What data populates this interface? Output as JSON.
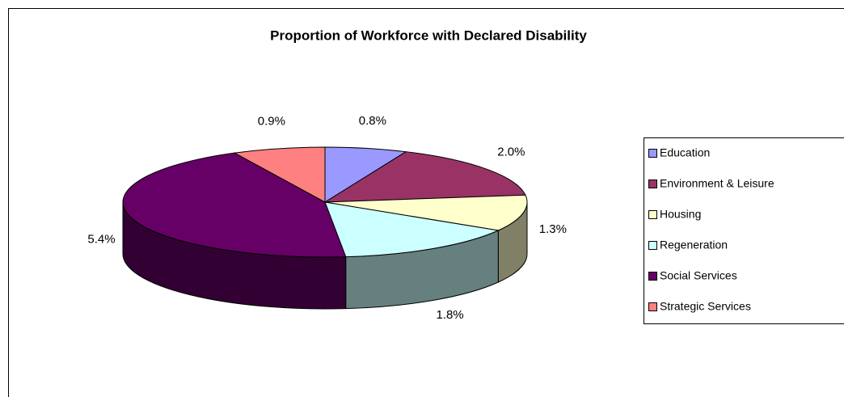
{
  "chart_data": {
    "type": "pie3d",
    "title": "Proportion of Workforce with Declared Disability",
    "categories": [
      "Education",
      "Environment & Leisure",
      "Housing",
      "Regeneration",
      "Social Services",
      "Strategic Services"
    ],
    "values": [
      0.8,
      2.0,
      1.3,
      1.8,
      5.4,
      0.9
    ],
    "value_labels": [
      "0.8%",
      "2.0%",
      "1.3%",
      "1.8%",
      "5.4%",
      "0.9%"
    ],
    "colors": [
      "#9999ff",
      "#993366",
      "#ffffcc",
      "#ccffff",
      "#660066",
      "#ff8080"
    ],
    "legend": "right"
  }
}
